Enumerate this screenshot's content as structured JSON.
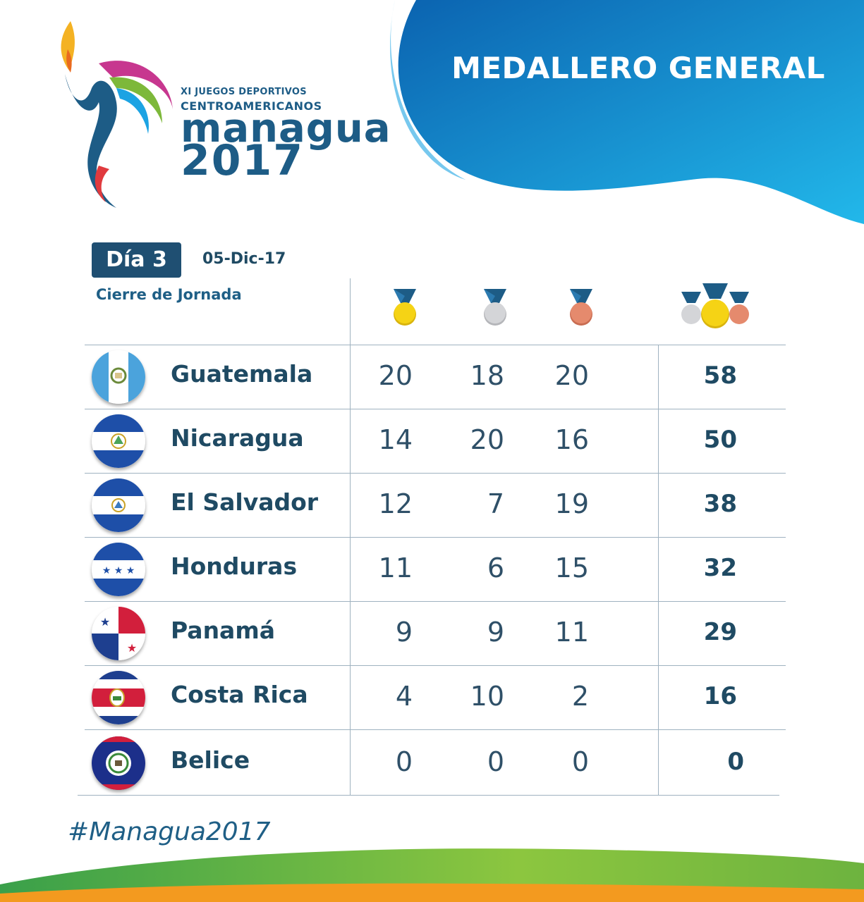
{
  "header": {
    "title": "MEDALLERO GENERAL",
    "logo_line1": "XI JUEGOS DEPORTIVOS",
    "logo_line2": "CENTROAMERICANOS",
    "logo_city": "managua",
    "logo_year": "2017"
  },
  "info": {
    "day": "Día 3",
    "date": "05-Dic-17",
    "session": "Cierre de Jornada"
  },
  "columns": [
    "gold-medal-icon",
    "silver-medal-icon",
    "bronze-medal-icon",
    "total-medals-icon"
  ],
  "rows": [
    {
      "country": "Guatemala",
      "gold": "20",
      "silver": "18",
      "bronze": "20",
      "total": "58"
    },
    {
      "country": "Nicaragua",
      "gold": "14",
      "silver": "20",
      "bronze": "16",
      "total": "50"
    },
    {
      "country": "El Salvador",
      "gold": "12",
      "silver": "7",
      "bronze": "19",
      "total": "38"
    },
    {
      "country": "Honduras",
      "gold": "11",
      "silver": "6",
      "bronze": "15",
      "total": "32"
    },
    {
      "country": "Panamá",
      "gold": "9",
      "silver": "9",
      "bronze": "11",
      "total": "29"
    },
    {
      "country": "Costa Rica",
      "gold": "4",
      "silver": "10",
      "bronze": "2",
      "total": "16"
    },
    {
      "country": "Belice",
      "gold": "0",
      "silver": "0",
      "bronze": "0",
      "total": "0"
    }
  ],
  "footer": {
    "hashtag": "#Managua2017"
  },
  "colors": {
    "primary": "#1f4a63",
    "banner_blue": "#1a8fd4",
    "gold": "#f2cf14",
    "silver": "#cfd0d3",
    "bronze": "#e2866a",
    "green": "#7cb82f",
    "orange": "#f39a1f"
  }
}
